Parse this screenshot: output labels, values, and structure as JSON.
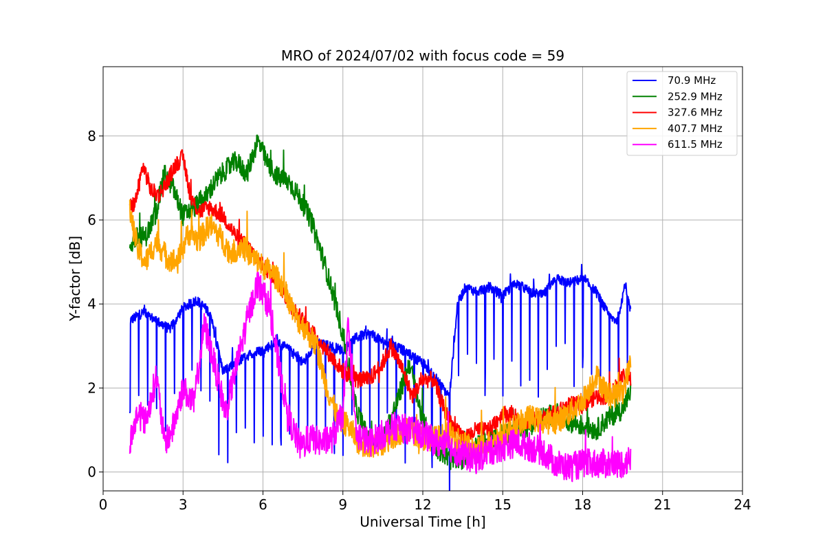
{
  "chart_data": {
    "type": "line",
    "title": "MRO of 2024/07/02 with focus code = 59",
    "xlabel": "Universal Time [h]",
    "ylabel": "Y-factor [dB]",
    "xlim": [
      0,
      24
    ],
    "ylim": [
      -0.45,
      9.65
    ],
    "xticks": [
      0,
      3,
      6,
      9,
      12,
      15,
      18,
      21,
      24
    ],
    "yticks": [
      0,
      2,
      4,
      6,
      8
    ],
    "grid": true,
    "legend_position": "top-right",
    "series": [
      {
        "name": "  70.9 MHz",
        "color": "#0000ff",
        "x": [
          1.0,
          1.5,
          2.0,
          2.5,
          3.0,
          3.5,
          4.0,
          4.5,
          5.0,
          5.5,
          6.0,
          6.5,
          7.0,
          7.5,
          8.0,
          8.5,
          9.0,
          9.5,
          10.0,
          10.5,
          11.0,
          11.5,
          12.0,
          12.5,
          13.0,
          13.3,
          13.6,
          14.0,
          14.5,
          15.0,
          15.5,
          16.0,
          16.5,
          17.0,
          17.5,
          18.0,
          18.5,
          19.0,
          19.3,
          19.6,
          19.8
        ],
        "y": [
          3.6,
          3.8,
          3.6,
          3.4,
          3.9,
          4.1,
          3.8,
          2.4,
          2.6,
          2.8,
          2.9,
          3.1,
          2.9,
          2.6,
          3.1,
          3.0,
          2.9,
          3.2,
          3.3,
          3.1,
          3.0,
          2.8,
          2.6,
          2.2,
          1.8,
          4.0,
          4.4,
          4.3,
          4.4,
          4.2,
          4.5,
          4.3,
          4.2,
          4.6,
          4.5,
          4.6,
          4.3,
          3.7,
          3.6,
          4.5,
          3.8
        ],
        "dip_depth": 2.2
      },
      {
        "name": "252.9 MHz",
        "color": "#008000",
        "x": [
          1.0,
          1.3,
          1.6,
          2.0,
          2.3,
          2.6,
          3.0,
          3.4,
          3.8,
          4.2,
          4.6,
          5.0,
          5.4,
          5.8,
          6.2,
          6.6,
          7.0,
          7.4,
          7.8,
          8.2,
          8.6,
          9.0,
          9.5,
          10.0,
          10.5,
          11.0,
          11.5,
          12.0,
          12.5,
          13.0,
          13.5,
          14.0,
          14.5,
          15.0,
          15.5,
          16.0,
          16.5,
          17.0,
          17.5,
          18.0,
          18.5,
          19.0,
          19.5,
          19.8
        ],
        "y": [
          5.4,
          5.6,
          5.6,
          6.2,
          7.1,
          6.8,
          6.1,
          6.3,
          6.5,
          6.9,
          7.2,
          7.4,
          7.1,
          7.9,
          7.3,
          7.0,
          6.9,
          6.5,
          6.0,
          5.2,
          4.3,
          3.3,
          1.5,
          0.7,
          0.8,
          1.6,
          2.6,
          1.2,
          0.6,
          0.3,
          0.3,
          0.6,
          0.8,
          0.9,
          1.0,
          1.1,
          1.3,
          1.4,
          1.2,
          1.1,
          1.0,
          1.3,
          1.5,
          1.9
        ],
        "noise": 0.25
      },
      {
        "name": "327.6 MHz",
        "color": "#ff0000",
        "x": [
          1.0,
          1.2,
          1.5,
          1.8,
          2.1,
          2.4,
          2.7,
          3.0,
          3.3,
          3.6,
          4.0,
          4.5,
          5.0,
          5.5,
          6.0,
          6.5,
          7.0,
          7.5,
          8.0,
          8.5,
          9.0,
          9.5,
          10.0,
          10.5,
          10.8,
          11.2,
          11.6,
          12.0,
          12.4,
          12.8,
          13.2,
          13.6,
          14.0,
          14.5,
          15.0,
          15.5,
          16.0,
          16.5,
          17.0,
          17.5,
          18.0,
          18.5,
          19.0,
          19.5,
          19.8
        ],
        "y": [
          6.3,
          6.4,
          7.3,
          6.7,
          6.6,
          6.9,
          7.3,
          7.5,
          6.5,
          6.2,
          6.3,
          6.1,
          5.6,
          5.3,
          4.9,
          4.6,
          4.0,
          3.6,
          3.2,
          2.8,
          2.4,
          2.2,
          2.2,
          2.6,
          3.0,
          2.5,
          1.8,
          2.2,
          2.2,
          1.5,
          1.0,
          0.8,
          1.0,
          1.0,
          1.4,
          1.3,
          1.2,
          1.3,
          1.4,
          1.6,
          1.6,
          1.8,
          1.8,
          2.3,
          2.2
        ],
        "noise": 0.2
      },
      {
        "name": "407.7 MHz",
        "color": "#ffa500",
        "x": [
          1.0,
          1.3,
          1.6,
          2.0,
          2.4,
          2.8,
          3.2,
          3.6,
          4.0,
          4.4,
          4.8,
          5.2,
          5.6,
          6.0,
          6.4,
          6.8,
          7.2,
          7.6,
          8.0,
          8.4,
          8.8,
          9.2,
          9.6,
          10.0,
          10.5,
          11.0,
          11.5,
          12.0,
          12.5,
          13.0,
          13.5,
          14.0,
          14.5,
          15.0,
          15.5,
          16.0,
          16.5,
          17.0,
          17.5,
          18.0,
          18.5,
          19.0,
          19.5,
          19.8
        ],
        "y": [
          6.2,
          5.3,
          5.0,
          5.5,
          5.1,
          5.0,
          5.7,
          5.5,
          5.9,
          5.6,
          5.2,
          5.4,
          5.1,
          4.9,
          4.7,
          4.4,
          3.7,
          3.4,
          3.0,
          2.0,
          1.3,
          1.1,
          0.7,
          0.6,
          0.7,
          0.9,
          1.0,
          0.8,
          0.8,
          0.9,
          0.7,
          0.5,
          0.7,
          0.9,
          1.1,
          1.3,
          1.2,
          1.2,
          1.4,
          1.7,
          2.3,
          1.8,
          1.9,
          2.6
        ],
        "noise": 0.3
      },
      {
        "name": "611.5 MHz",
        "color": "#ff00ff",
        "x": [
          1.0,
          1.3,
          1.6,
          2.0,
          2.3,
          2.6,
          3.0,
          3.4,
          3.8,
          4.2,
          4.6,
          5.0,
          5.4,
          5.8,
          6.2,
          6.6,
          7.0,
          7.4,
          7.8,
          8.2,
          8.6,
          9.0,
          9.2,
          9.5,
          10.0,
          10.5,
          11.0,
          11.5,
          12.0,
          12.5,
          13.0,
          13.5,
          14.0,
          14.5,
          15.0,
          15.5,
          16.0,
          16.5,
          17.0,
          17.5,
          18.0,
          18.5,
          19.0,
          19.5,
          19.8
        ],
        "y": [
          0.7,
          1.4,
          1.2,
          2.3,
          0.7,
          1.0,
          2.0,
          1.6,
          3.5,
          2.5,
          1.4,
          2.5,
          3.6,
          4.5,
          4.0,
          2.5,
          1.2,
          0.6,
          0.8,
          0.7,
          0.8,
          1.4,
          3.5,
          0.9,
          0.7,
          0.9,
          1.1,
          1.0,
          0.9,
          0.7,
          0.6,
          0.4,
          0.3,
          0.5,
          0.6,
          0.7,
          0.6,
          0.5,
          0.2,
          0.1,
          0.2,
          0.2,
          0.2,
          0.2,
          0.3
        ],
        "noise": 0.35
      }
    ]
  }
}
